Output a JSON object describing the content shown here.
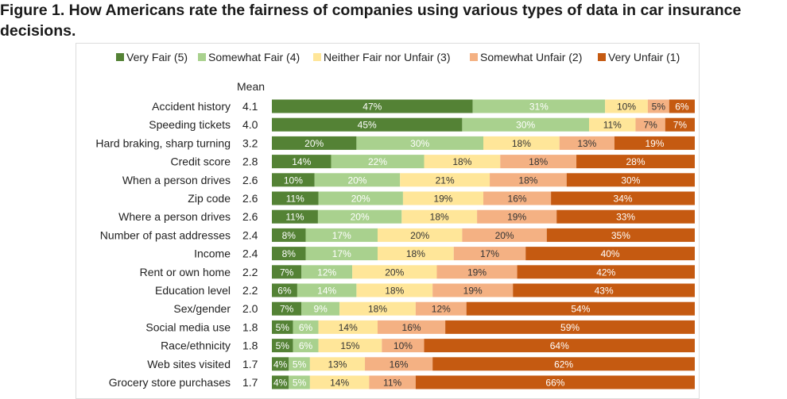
{
  "figure_title": "Figure 1. How Americans rate the fairness of companies using various types of data in car insurance decisions.",
  "colors": {
    "very_fair": "#548235",
    "somewhat_fair": "#A9D18E",
    "neither": "#FFE699",
    "somewhat_unfair": "#F4B183",
    "very_unfair": "#C55A11"
  },
  "chart_data": {
    "type": "bar",
    "orientation": "horizontal",
    "stacked": true,
    "percent_scale": true,
    "xlim": [
      0,
      100
    ],
    "grid": false,
    "legend_position": "top",
    "mean_header": "Mean",
    "categories": [
      "Accident history",
      "Speeding tickets",
      "Hard braking, sharp turning",
      "Credit score",
      "When a person drives",
      "Zip code",
      "Where a person drives",
      "Number of past addresses",
      "Income",
      "Rent or own home",
      "Education level",
      "Sex/gender",
      "Social media use",
      "Race/ethnicity",
      "Web sites visited",
      "Grocery store purchases"
    ],
    "means": [
      "4.1",
      "4.0",
      "3.2",
      "2.8",
      "2.6",
      "2.6",
      "2.6",
      "2.4",
      "2.4",
      "2.2",
      "2.2",
      "2.0",
      "1.8",
      "1.8",
      "1.7",
      "1.7"
    ],
    "series": [
      {
        "name": "Very Fair (5)",
        "color": "#548235",
        "label_color": "#ffffff",
        "values": [
          47,
          45,
          20,
          14,
          10,
          11,
          11,
          8,
          8,
          7,
          6,
          7,
          5,
          5,
          4,
          4
        ]
      },
      {
        "name": "Somewhat Fair (4)",
        "color": "#A9D18E",
        "label_color": "#ffffff",
        "values": [
          31,
          30,
          30,
          22,
          20,
          20,
          20,
          17,
          17,
          12,
          14,
          9,
          6,
          6,
          5,
          5
        ]
      },
      {
        "name": "Neither Fair nor Unfair (3)",
        "color": "#FFE699",
        "label_color": "#333333",
        "values": [
          10,
          11,
          18,
          18,
          21,
          19,
          18,
          20,
          18,
          20,
          18,
          18,
          14,
          15,
          13,
          14
        ]
      },
      {
        "name": "Somewhat Unfair (2)",
        "color": "#F4B183",
        "label_color": "#333333",
        "values": [
          5,
          7,
          13,
          18,
          18,
          16,
          19,
          20,
          17,
          19,
          19,
          12,
          16,
          10,
          16,
          11
        ]
      },
      {
        "name": "Very Unfair (1)",
        "color": "#C55A11",
        "label_color": "#ffffff",
        "values": [
          6,
          7,
          19,
          28,
          30,
          34,
          33,
          35,
          40,
          42,
          43,
          54,
          59,
          64,
          62,
          66
        ]
      }
    ]
  }
}
